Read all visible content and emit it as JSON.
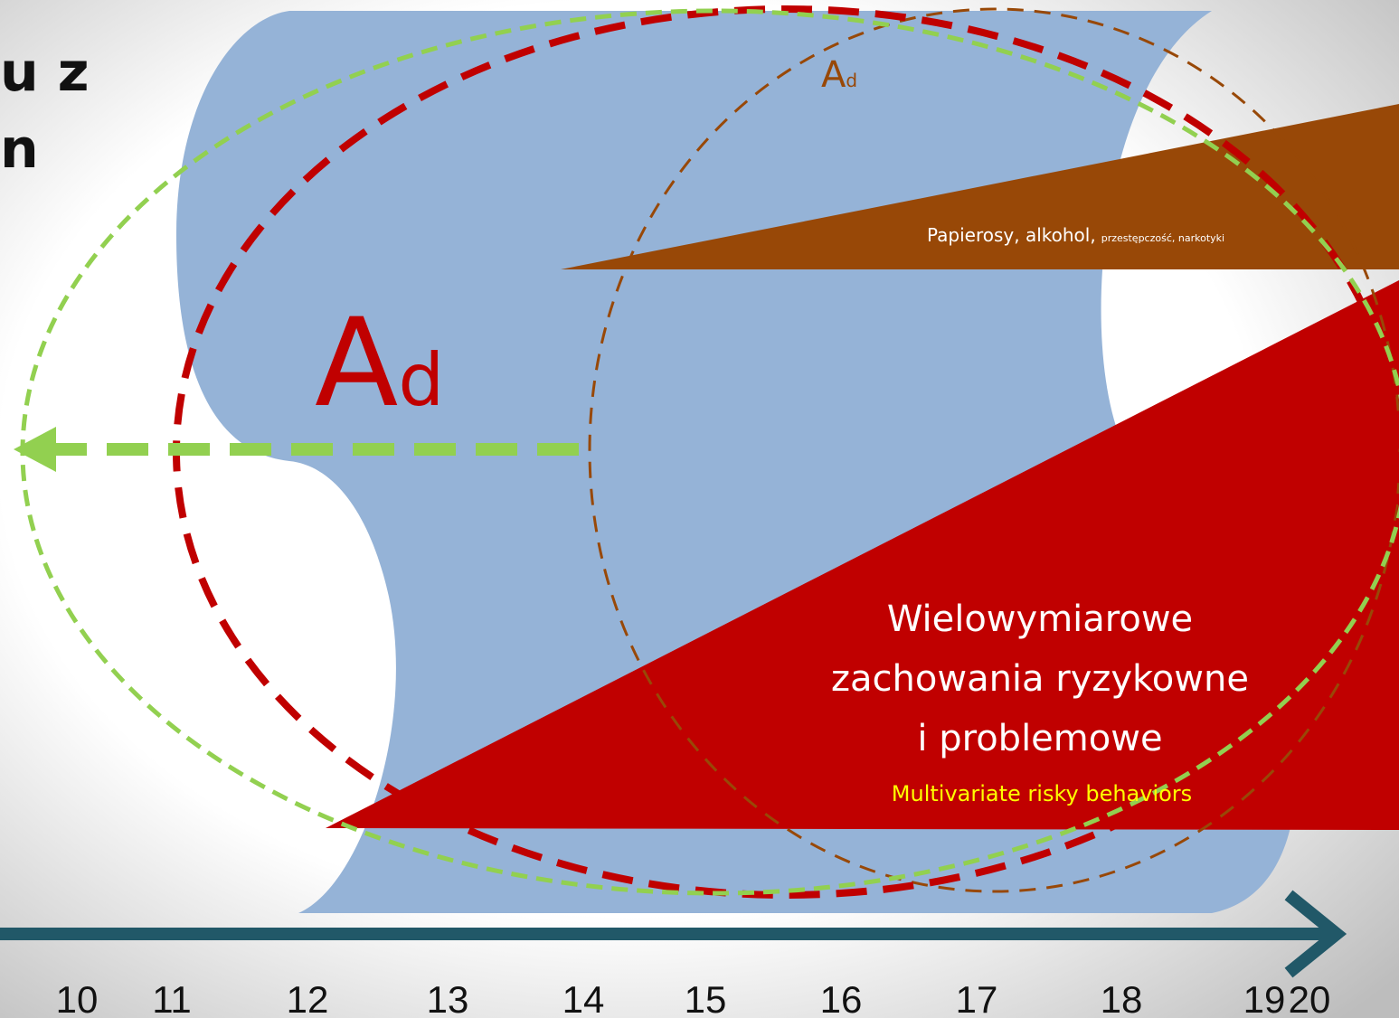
{
  "title_fragments": [
    "u z",
    "n"
  ],
  "big_label": {
    "main": "A",
    "sub": "d"
  },
  "small_label": {
    "main": "A",
    "sub": "d"
  },
  "brown_band": {
    "text": "Papierosy, alkohol,",
    "small_text": "przestępczość, narkotyki"
  },
  "red_band": {
    "lines": [
      "Wielowymiarowe",
      "zachowania ryzykowne",
      "i problemowe"
    ],
    "subtitle": "Multivariate risky behaviors"
  },
  "timeline": {
    "labels": [
      "10",
      "11",
      "12",
      "13",
      "14",
      "15",
      "16",
      "17",
      "18",
      "19",
      "20"
    ]
  }
}
